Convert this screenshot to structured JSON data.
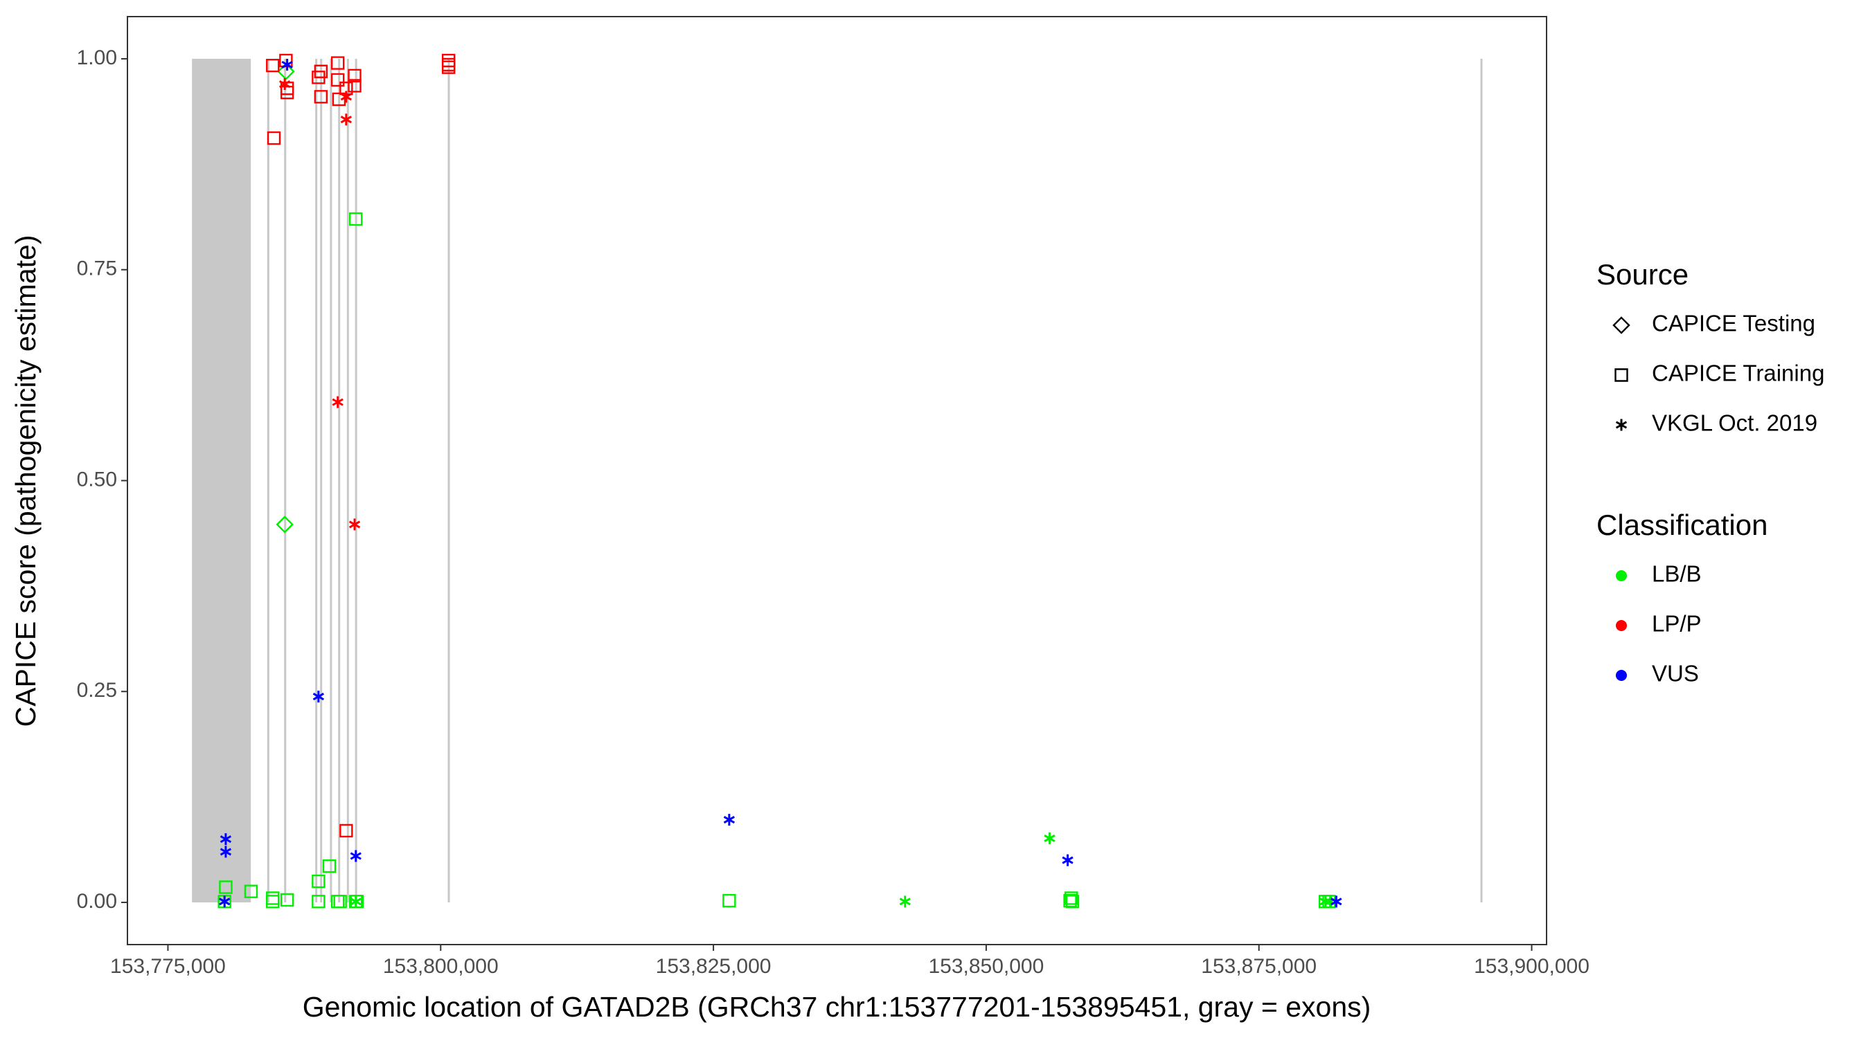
{
  "chart_data": {
    "type": "scatter",
    "x_label": "Genomic location of GATAD2B (GRCh37 chr1:153777201-153895451, gray = exons)",
    "y_label": "CAPICE score (pathogenicity estimate)",
    "xlim": [
      153771289,
      153901363
    ],
    "ylim": [
      -0.05,
      1.05
    ],
    "xticks": [
      {
        "value": 153775000,
        "label": "153,775,000"
      },
      {
        "value": 153800000,
        "label": "153,800,000"
      },
      {
        "value": 153825000,
        "label": "153,825,000"
      },
      {
        "value": 153850000,
        "label": "153,850,000"
      },
      {
        "value": 153875000,
        "label": "153,875,000"
      },
      {
        "value": 153900000,
        "label": "153,900,000"
      }
    ],
    "yticks": [
      {
        "value": 0,
        "label": "0.00"
      },
      {
        "value": 0.25,
        "label": "0.25"
      },
      {
        "value": 0.5,
        "label": "0.50"
      },
      {
        "value": 0.75,
        "label": "0.75"
      },
      {
        "value": 1,
        "label": "1.00"
      }
    ],
    "exon_color": "#c8c8c8",
    "exons": [
      [
        153777201,
        153782600
      ],
      [
        153784100,
        153784250
      ],
      [
        153785650,
        153785800
      ],
      [
        153788500,
        153788650
      ],
      [
        153788950,
        153789100
      ],
      [
        153789850,
        153790000
      ],
      [
        153790600,
        153790750
      ],
      [
        153791400,
        153791550
      ],
      [
        153792150,
        153792300
      ],
      [
        153800650,
        153800800
      ],
      [
        153895300,
        153895451
      ]
    ],
    "shape_legend": {
      "title": "Source",
      "items": [
        {
          "name": "CAPICE Testing",
          "shape": "diamond"
        },
        {
          "name": "CAPICE Training",
          "shape": "square"
        },
        {
          "name": "VKGL Oct. 2019",
          "shape": "asterisk"
        }
      ]
    },
    "color_legend": {
      "title": "Classification",
      "items": [
        {
          "name": "LB/B",
          "color": "#00ee00"
        },
        {
          "name": "LP/P",
          "color": "#ff0000"
        },
        {
          "name": "VUS",
          "color": "#0000ff"
        }
      ]
    },
    "series": [
      {
        "source": "CAPICE Training",
        "classification": "LB/B",
        "x": [
          153780299,
          153780189,
          153782618,
          153784605,
          153784605,
          153785930,
          153788800,
          153788800,
          153789794,
          153790566,
          153790787,
          153792222,
          153792222,
          153792333,
          153826446,
          153857690,
          153857800,
          153857910,
          153881094,
          153881426
        ],
        "y": [
          0.018,
          0.001,
          0.013,
          0.005,
          0.001,
          0.003,
          0.001,
          0.025,
          0.043,
          0.001,
          0.001,
          0.81,
          0.001,
          0.001,
          0.002,
          0.002,
          0.005,
          0.001,
          0.001,
          0.001
        ]
      },
      {
        "source": "CAPICE Testing",
        "classification": "LB/B",
        "x": [
          153785709,
          153785819
        ],
        "y": [
          0.448,
          0.985
        ]
      },
      {
        "source": "VKGL Oct. 2019",
        "classification": "LB/B",
        "x": [
          153780189,
          153792222,
          153842565,
          153855813,
          153881094,
          153881536
        ],
        "y": [
          0.001,
          0.001,
          0.001,
          0.076,
          0.001,
          0.001
        ]
      },
      {
        "source": "CAPICE Training",
        "classification": "LP/P",
        "x": [
          153784605,
          153784715,
          153785819,
          153785930,
          153785930,
          153788800,
          153789021,
          153789021,
          153790566,
          153790677,
          153790566,
          153791339,
          153792112,
          153792112,
          153791339,
          153800723,
          153800723,
          153800723
        ],
        "y": [
          0.992,
          0.906,
          0.998,
          0.965,
          0.96,
          0.978,
          0.985,
          0.955,
          0.995,
          0.952,
          0.975,
          0.965,
          0.98,
          0.968,
          0.085,
          0.998,
          0.99,
          0.993
        ]
      },
      {
        "source": "VKGL Oct. 2019",
        "classification": "LP/P",
        "x": [
          153785709,
          153790566,
          153791339,
          153791339,
          153792112
        ],
        "y": [
          0.97,
          0.593,
          0.955,
          0.928,
          0.448
        ]
      },
      {
        "source": "VKGL Oct. 2019",
        "classification": "VUS",
        "x": [
          153780299,
          153780299,
          153780189,
          153785930,
          153788800,
          153792222,
          153826446,
          153857469,
          153882088
        ],
        "y": [
          0.075,
          0.06,
          0.001,
          0.993,
          0.244,
          0.055,
          0.098,
          0.05,
          0.001
        ]
      }
    ]
  }
}
